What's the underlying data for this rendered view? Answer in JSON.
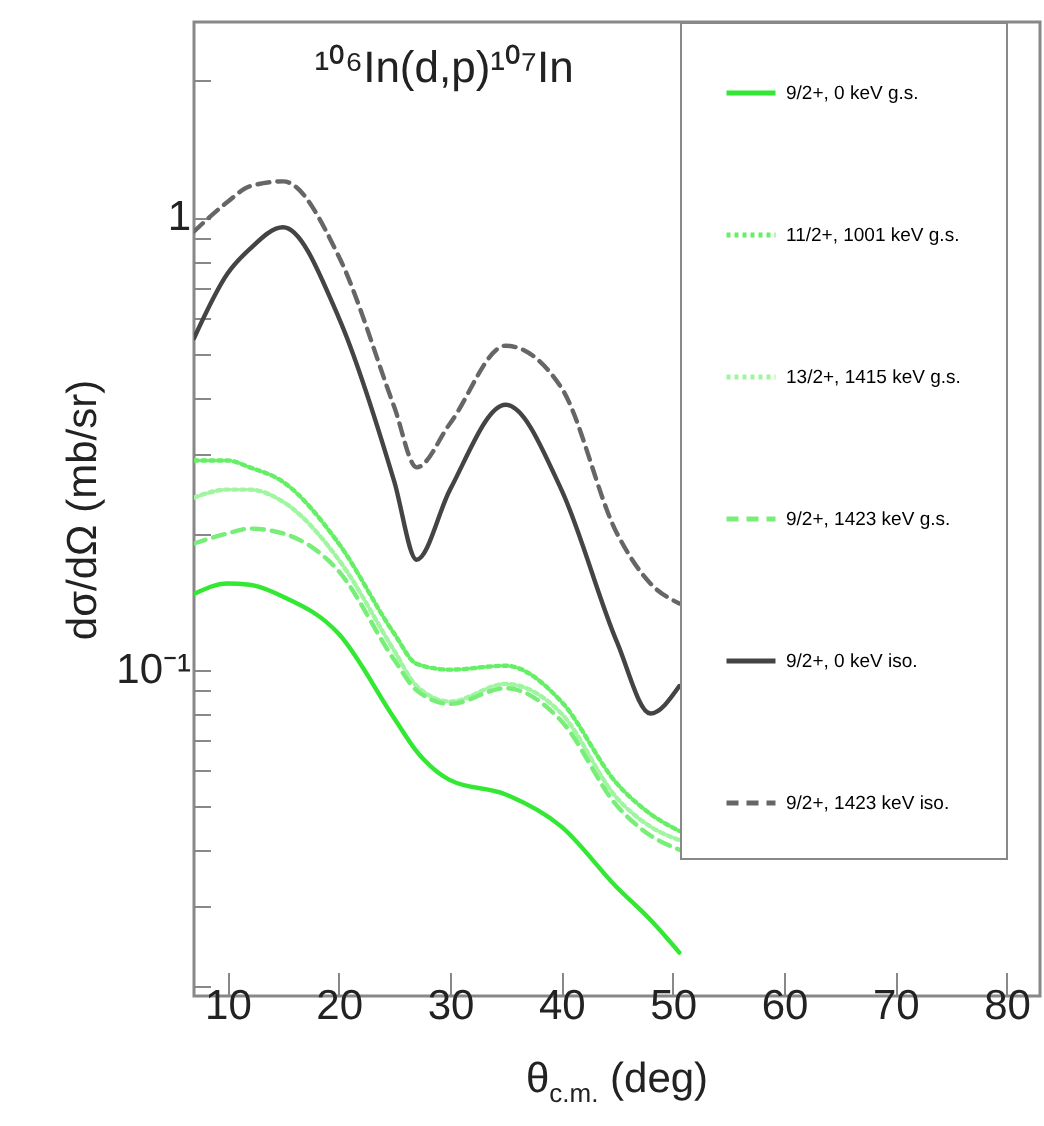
{
  "chart_data": {
    "type": "line",
    "title": "¹⁰⁶In(d,p)¹⁰⁷In",
    "xlabel": "θ$_{c.m.}$ (deg)",
    "ylabel": "dσ/dΩ (mb/sr)",
    "x": [
      7,
      10,
      12,
      15,
      20,
      25,
      27,
      30,
      35,
      40,
      45,
      48,
      50.6
    ],
    "series": [
      {
        "name": "9/2+, 0 keV g.s.",
        "color": "#33e833",
        "line_style": "solid",
        "values": [
          0.147,
          0.155,
          0.154,
          0.145,
          0.12,
          0.078,
          0.066,
          0.057,
          0.053,
          0.045,
          0.033,
          0.028,
          0.0237
        ]
      },
      {
        "name": "11/2+, 1001 keV g.s.",
        "color": "#66ee66",
        "line_style": "dotted",
        "values": [
          0.29,
          0.29,
          0.28,
          0.26,
          0.19,
          0.12,
          0.103,
          0.1,
          0.102,
          0.085,
          0.056,
          0.048,
          0.044
        ]
      },
      {
        "name": "13/2+, 1415 keV g.s.",
        "color": "#a0f5a0",
        "line_style": "dotted",
        "values": [
          0.24,
          0.25,
          0.25,
          0.235,
          0.175,
          0.11,
          0.092,
          0.085,
          0.093,
          0.08,
          0.052,
          0.045,
          0.042
        ]
      },
      {
        "name": "9/2+, 1423 keV g.s.",
        "color": "#77ee77",
        "line_style": "dashed",
        "values": [
          0.19,
          0.2,
          0.205,
          0.2,
          0.165,
          0.105,
          0.09,
          0.084,
          0.091,
          0.077,
          0.05,
          0.043,
          0.04
        ]
      },
      {
        "name": "9/2+, 0 keV iso.",
        "color": "#444444",
        "line_style": "solid",
        "values": [
          0.54,
          0.75,
          0.85,
          0.95,
          0.6,
          0.26,
          0.175,
          0.25,
          0.385,
          0.25,
          0.115,
          0.08,
          0.092
        ]
      },
      {
        "name": "9/2+, 1423 keV iso.",
        "color": "#666666",
        "line_style": "dashed",
        "values": [
          0.93,
          1.08,
          1.17,
          1.2,
          0.82,
          0.38,
          0.28,
          0.35,
          0.52,
          0.42,
          0.2,
          0.155,
          0.14
        ]
      }
    ],
    "log": "y",
    "grid": false,
    "legend": "top right",
    "xlim": [
      7,
      83
    ],
    "xticks": [
      10,
      20,
      30,
      40,
      50,
      60,
      70,
      80
    ],
    "ylim": [
      0.019,
      2.7
    ],
    "yticks": [
      {
        "value": 0.02,
        "label": null
      },
      {
        "value": 0.03,
        "label": null
      },
      {
        "value": 0.04,
        "label": null
      },
      {
        "value": 0.05,
        "label": null
      },
      {
        "value": 0.06,
        "label": null
      },
      {
        "value": 0.07,
        "label": null
      },
      {
        "value": 0.08,
        "label": null
      },
      {
        "value": 0.09,
        "label": null
      },
      {
        "value": 0.1,
        "label": "10⁻¹"
      },
      {
        "value": 0.2,
        "label": null
      },
      {
        "value": 0.3,
        "label": null
      },
      {
        "value": 0.4,
        "label": null
      },
      {
        "value": 0.5,
        "label": null
      },
      {
        "value": 0.6,
        "label": null
      },
      {
        "value": 0.7,
        "label": null
      },
      {
        "value": 0.8,
        "label": null
      },
      {
        "value": 0.9,
        "label": null
      },
      1,
      {
        "value": 2,
        "label": null
      }
    ]
  }
}
